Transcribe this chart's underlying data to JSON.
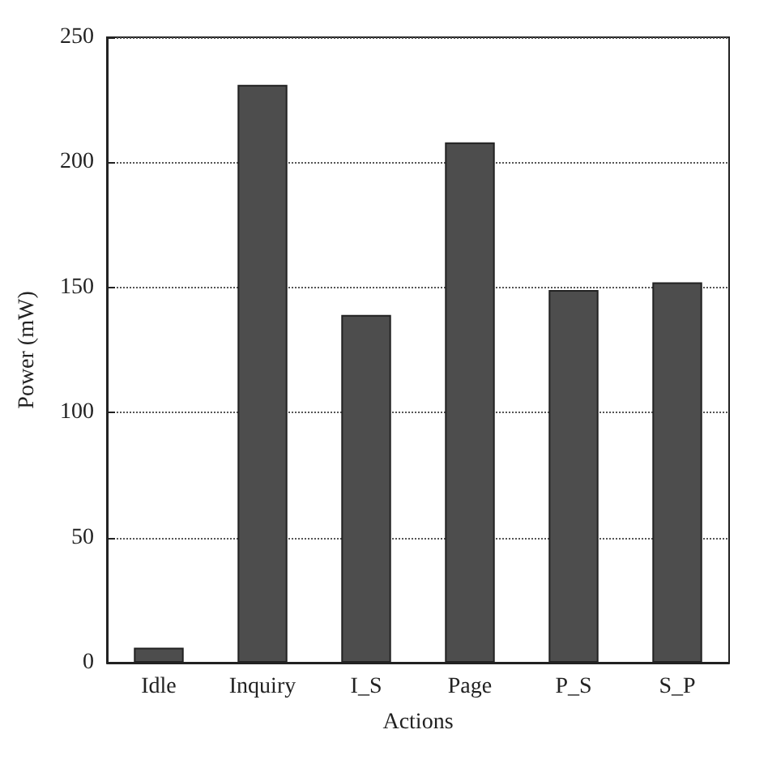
{
  "chart_data": {
    "type": "bar",
    "xlabel": "Actions",
    "ylabel": "Power (mW)",
    "categories": [
      "Idle",
      "Inquiry",
      "I_S",
      "Page",
      "P_S",
      "S_P"
    ],
    "values": [
      6,
      231,
      139,
      208,
      149,
      152
    ],
    "color": "#4d4d4d",
    "ylim": [
      0,
      250
    ],
    "yticks": [
      0,
      50,
      100,
      150,
      200,
      250
    ],
    "grid": "y"
  }
}
